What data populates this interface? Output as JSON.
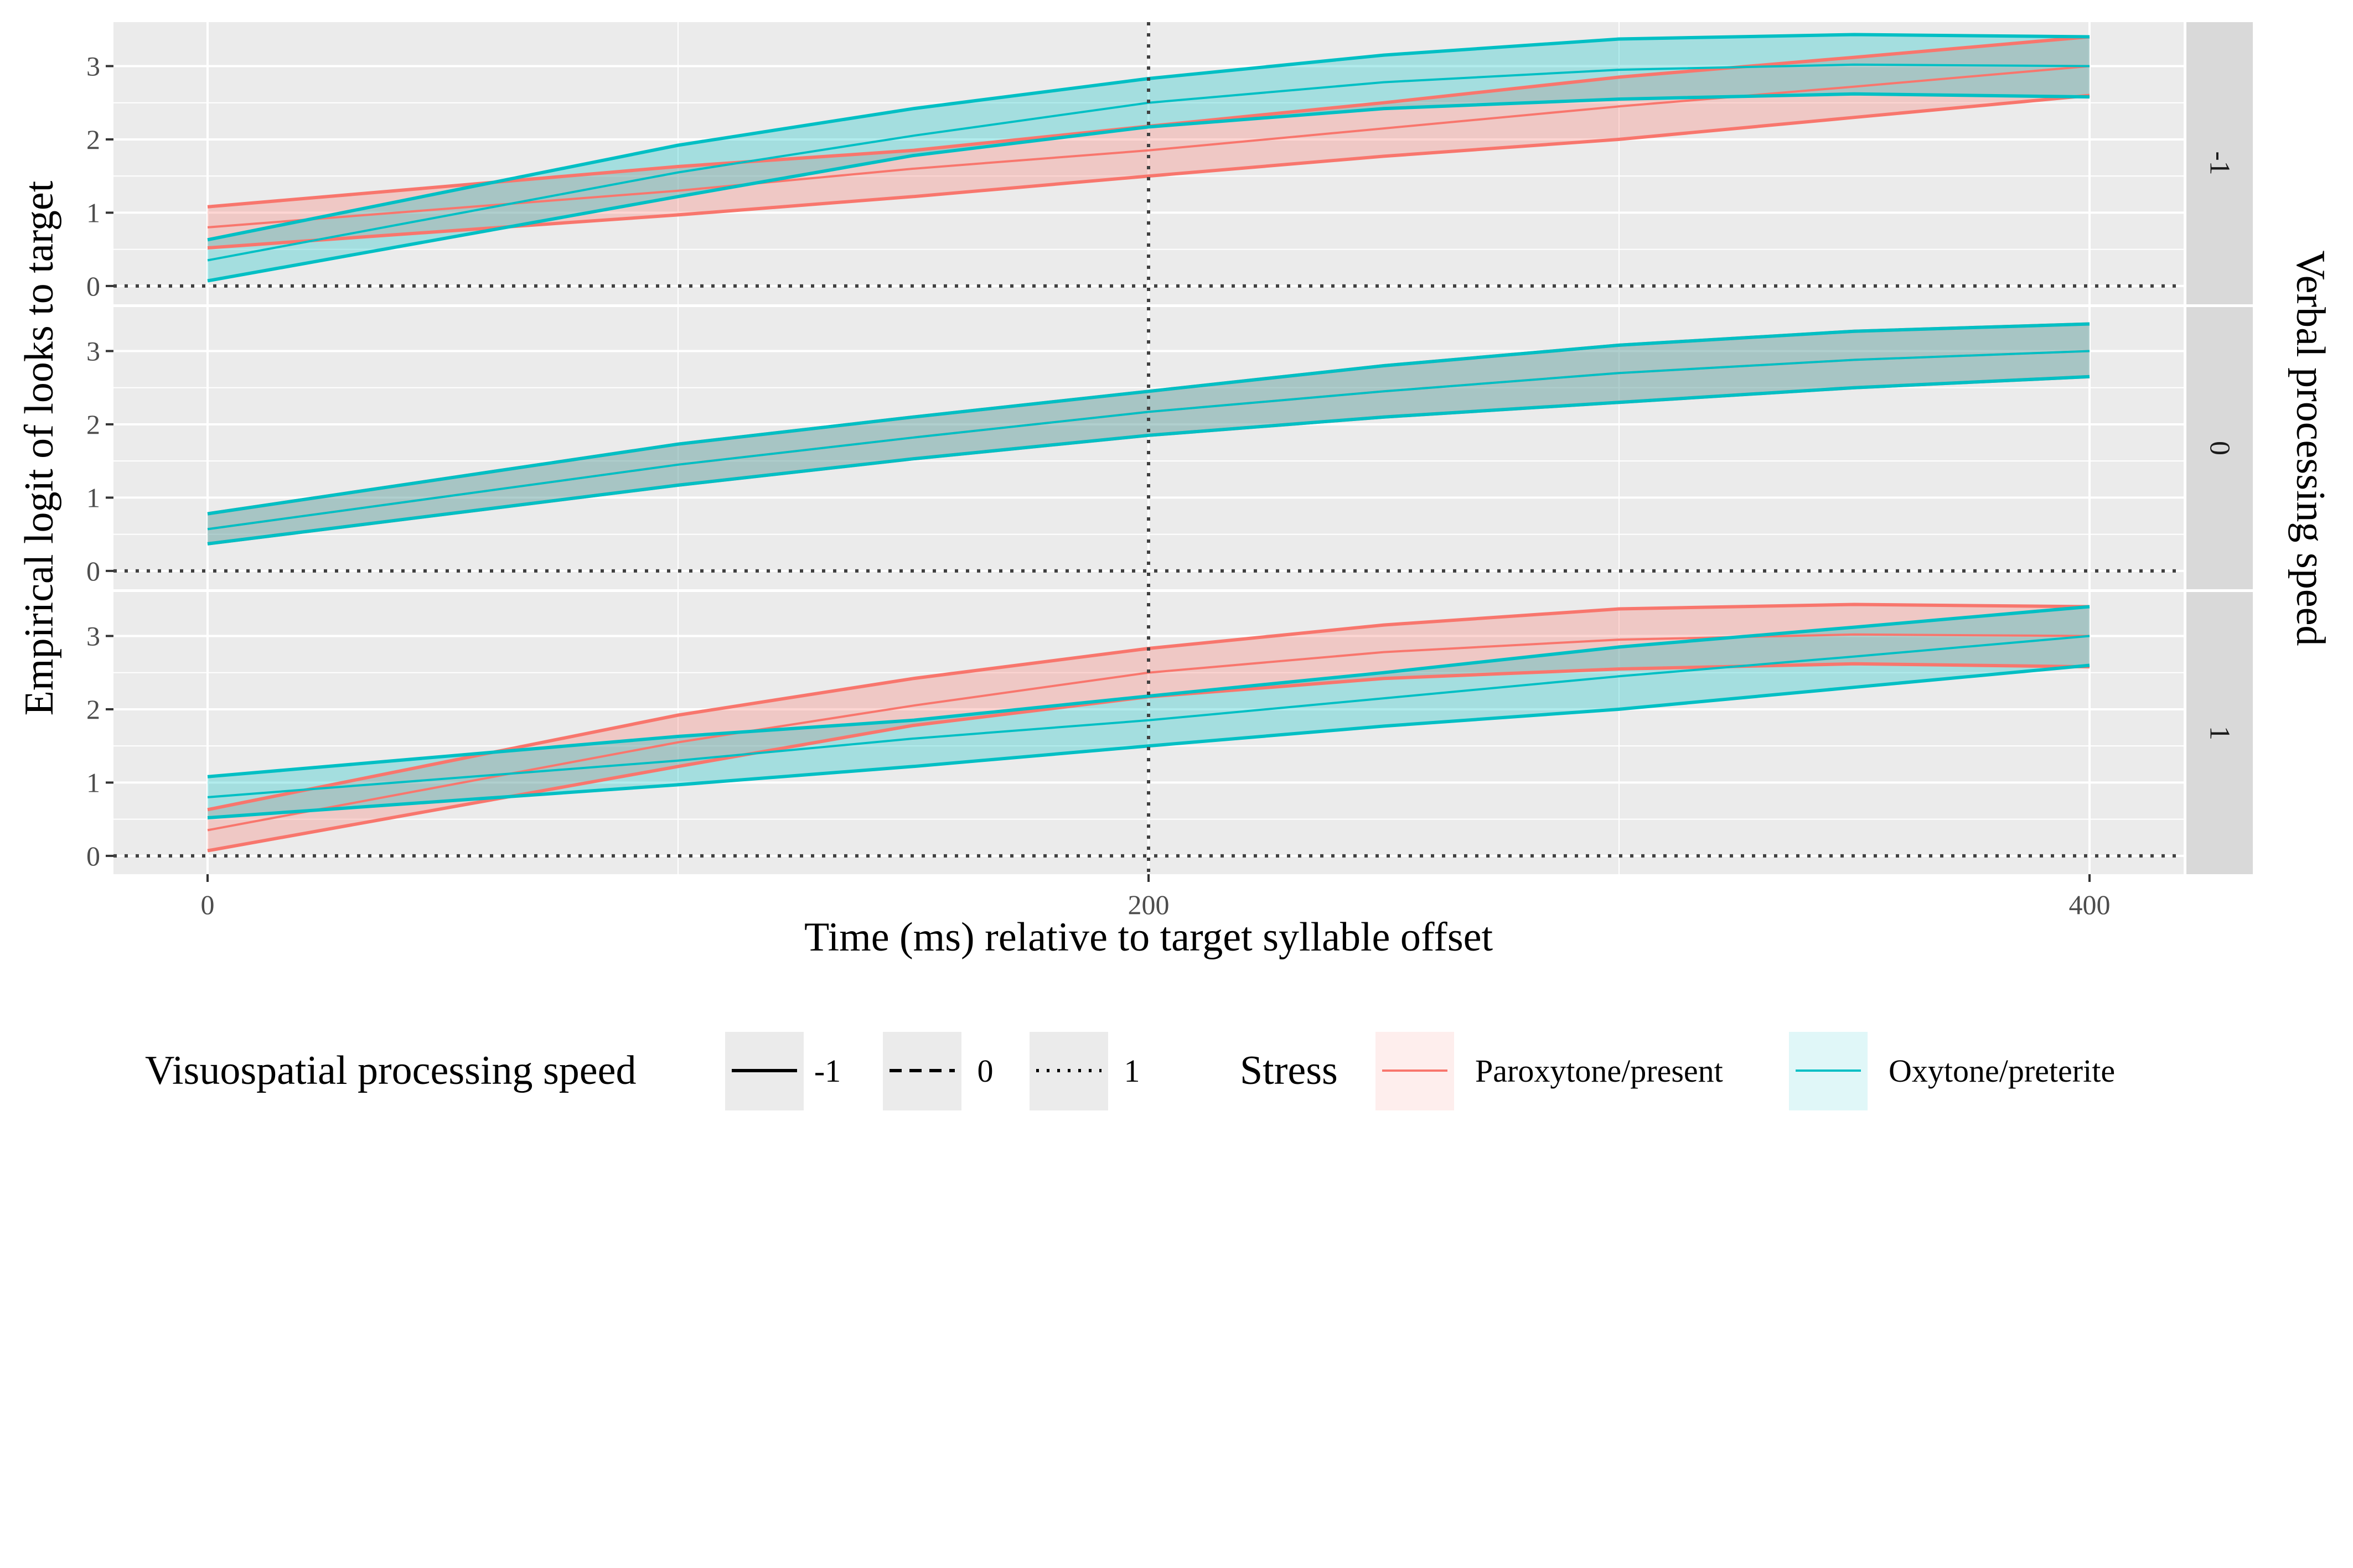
{
  "chart_data": {
    "type": "line",
    "xlabel": "Time (ms) relative to target syllable offset",
    "ylabel": "Empirical logit of looks to target",
    "facet_label": "Verbal processing speed",
    "x_ticks": [
      0,
      200,
      400
    ],
    "y_ticks": [
      0,
      1,
      2,
      3
    ],
    "xlim": [
      -20,
      420
    ],
    "ylim": [
      -0.25,
      3.6
    ],
    "reference_lines": {
      "x": 200,
      "y": 0,
      "style": "dotted"
    },
    "x": [
      0,
      100,
      150,
      200,
      250,
      300,
      350,
      400
    ],
    "colors": {
      "Paroxytone/present": "#F8766D",
      "Oxytone/preterite": "#00BFC4"
    },
    "legends": [
      {
        "title": "Visuospatial processing speed",
        "keys": [
          {
            "label": "-1",
            "linetype": "solid"
          },
          {
            "label": "0",
            "linetype": "dashed"
          },
          {
            "label": "1",
            "linetype": "dotted"
          }
        ]
      },
      {
        "title": "Stress",
        "keys": [
          {
            "label": "Paroxytone/present",
            "color": "#F8766D"
          },
          {
            "label": "Oxytone/preterite",
            "color": "#00BFC4"
          }
        ]
      }
    ],
    "panels": [
      {
        "strip": "-1",
        "series": [
          {
            "name": "Paroxytone/present",
            "color": "#F8766D",
            "mean": [
              0.8,
              1.3,
              1.6,
              1.85,
              2.15,
              2.45,
              2.72,
              3.0
            ],
            "lower": [
              0.52,
              0.97,
              1.22,
              1.5,
              1.77,
              2.0,
              2.3,
              2.6
            ],
            "upper": [
              1.08,
              1.63,
              1.85,
              2.18,
              2.5,
              2.85,
              3.12,
              3.4
            ]
          },
          {
            "name": "Oxytone/preterite",
            "color": "#00BFC4",
            "mean": [
              0.35,
              1.55,
              2.05,
              2.5,
              2.78,
              2.95,
              3.02,
              3.0
            ],
            "lower": [
              0.07,
              1.22,
              1.78,
              2.17,
              2.42,
              2.55,
              2.62,
              2.58
            ],
            "upper": [
              0.63,
              1.92,
              2.42,
              2.83,
              3.15,
              3.37,
              3.43,
              3.4
            ]
          }
        ]
      },
      {
        "strip": "0",
        "series": [
          {
            "name": "Paroxytone/present",
            "color": "#F8766D",
            "mean": [
              0.57,
              1.45,
              1.82,
              2.17,
              2.45,
              2.7,
              2.88,
              3.0
            ],
            "lower": [
              0.37,
              1.17,
              1.53,
              1.85,
              2.1,
              2.3,
              2.5,
              2.65
            ],
            "upper": [
              0.78,
              1.73,
              2.1,
              2.45,
              2.8,
              3.08,
              3.27,
              3.37
            ]
          },
          {
            "name": "Oxytone/preterite",
            "color": "#00BFC4",
            "mean": [
              0.57,
              1.45,
              1.82,
              2.17,
              2.45,
              2.7,
              2.88,
              3.0
            ],
            "lower": [
              0.37,
              1.17,
              1.53,
              1.85,
              2.1,
              2.3,
              2.5,
              2.65
            ],
            "upper": [
              0.78,
              1.73,
              2.1,
              2.45,
              2.8,
              3.08,
              3.27,
              3.37
            ]
          }
        ]
      },
      {
        "strip": "1",
        "series": [
          {
            "name": "Paroxytone/present",
            "color": "#F8766D",
            "mean": [
              0.35,
              1.55,
              2.05,
              2.5,
              2.78,
              2.95,
              3.02,
              3.0
            ],
            "lower": [
              0.07,
              1.22,
              1.78,
              2.17,
              2.42,
              2.55,
              2.62,
              2.58
            ],
            "upper": [
              0.63,
              1.92,
              2.42,
              2.83,
              3.15,
              3.37,
              3.43,
              3.4
            ]
          },
          {
            "name": "Oxytone/preterite",
            "color": "#00BFC4",
            "mean": [
              0.8,
              1.3,
              1.6,
              1.85,
              2.15,
              2.45,
              2.72,
              3.0
            ],
            "lower": [
              0.52,
              0.97,
              1.22,
              1.5,
              1.77,
              2.0,
              2.3,
              2.6
            ],
            "upper": [
              1.08,
              1.63,
              1.85,
              2.18,
              2.5,
              2.85,
              3.12,
              3.4
            ]
          }
        ]
      }
    ]
  }
}
